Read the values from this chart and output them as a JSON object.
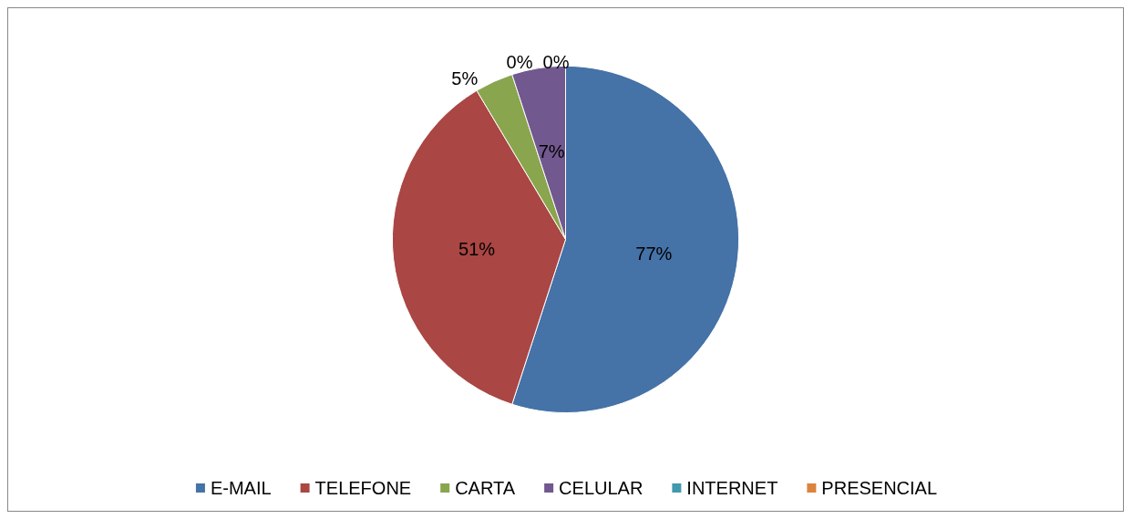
{
  "chart_data": {
    "type": "pie",
    "categories": [
      "E-MAIL",
      "TELEFONE",
      "CARTA",
      "CELULAR",
      "INTERNET",
      "PRESENCIAL"
    ],
    "values": [
      77,
      51,
      5,
      7,
      0,
      0
    ],
    "value_labels": [
      "77%",
      "51%",
      "5%",
      "7%",
      "0%",
      "0%"
    ],
    "colors": [
      "#4572a7",
      "#aa4643",
      "#89a54e",
      "#71588f",
      "#4198af",
      "#db843d"
    ],
    "legend": "bottom"
  }
}
